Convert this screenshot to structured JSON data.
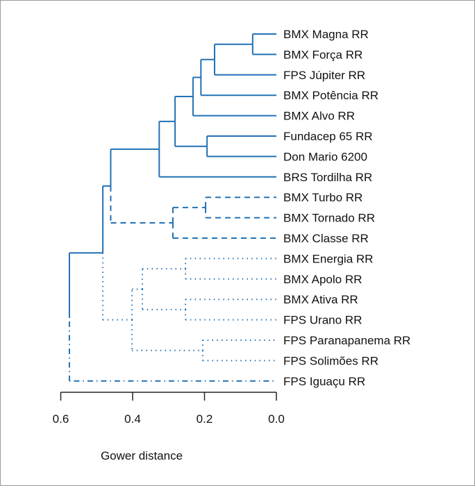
{
  "chart_data": {
    "type": "dendrogram",
    "orientation": "horizontal",
    "xlabel": "Gower distance",
    "xlim": [
      0.6,
      0.0
    ],
    "ticks": [
      "0.6",
      "0.4",
      "0.2",
      "0.0"
    ],
    "tick_values": [
      0.6,
      0.4,
      0.2,
      0.0
    ],
    "line_color": "#2171b5",
    "leaves": [
      "BMX Magna RR",
      "BMX Força RR",
      "FPS Júpiter RR",
      "BMX Potência RR",
      "BMX Alvo RR",
      "Fundacep 65 RR",
      "Don Mario 6200",
      "BRS Tordilha RR",
      "BMX Turbo RR",
      "BMX Tornado RR",
      "BMX Classe RR",
      "BMX Energia RR",
      "BMX Apolo RR",
      "BMX Ativa RR",
      "FPS Urano RR",
      "FPS Paranapanema RR",
      "FPS Solimões RR",
      "FPS Iguaçu RR"
    ],
    "tree": {
      "height": 0.576,
      "style": "solid",
      "children": [
        {
          "height": 0.483,
          "style": "solid",
          "children": [
            {
              "height": 0.461,
              "style": "solid",
              "children": [
                {
                  "height": 0.326,
                  "style": "solid",
                  "children": [
                    {
                      "height": 0.282,
                      "style": "solid",
                      "children": [
                        {
                          "height": 0.232,
                          "style": "solid",
                          "children": [
                            {
                              "height": 0.21,
                              "style": "solid",
                              "children": [
                                {
                                  "height": 0.172,
                                  "style": "solid",
                                  "children": [
                                    {
                                      "height": 0.066,
                                      "style": "solid",
                                      "children": [
                                        {
                                          "leaf": 0,
                                          "style": "solid"
                                        },
                                        {
                                          "leaf": 1,
                                          "style": "solid"
                                        }
                                      ]
                                    },
                                    {
                                      "leaf": 2,
                                      "style": "solid"
                                    }
                                  ]
                                },
                                {
                                  "leaf": 3,
                                  "style": "solid"
                                }
                              ]
                            },
                            {
                              "leaf": 4,
                              "style": "solid"
                            }
                          ]
                        },
                        {
                          "height": 0.193,
                          "style": "solid",
                          "children": [
                            {
                              "leaf": 5,
                              "style": "solid"
                            },
                            {
                              "leaf": 6,
                              "style": "solid"
                            }
                          ]
                        }
                      ]
                    },
                    {
                      "leaf": 7,
                      "style": "solid"
                    }
                  ]
                },
                {
                  "height": 0.288,
                  "style": "dashed",
                  "children": [
                    {
                      "height": 0.197,
                      "style": "dashed",
                      "children": [
                        {
                          "leaf": 8,
                          "style": "dashed"
                        },
                        {
                          "leaf": 9,
                          "style": "dashed"
                        }
                      ]
                    },
                    {
                      "leaf": 10,
                      "style": "dashed"
                    }
                  ]
                }
              ]
            },
            {
              "height": 0.402,
              "style": "dotted",
              "children": [
                {
                  "height": 0.373,
                  "style": "dotted",
                  "children": [
                    {
                      "height": 0.253,
                      "style": "dotted",
                      "children": [
                        {
                          "leaf": 11,
                          "style": "dotted"
                        },
                        {
                          "leaf": 12,
                          "style": "dotted"
                        }
                      ]
                    },
                    {
                      "height": 0.253,
                      "style": "dotted",
                      "children": [
                        {
                          "leaf": 13,
                          "style": "dotted"
                        },
                        {
                          "leaf": 14,
                          "style": "dotted"
                        }
                      ]
                    }
                  ]
                },
                {
                  "height": 0.205,
                  "style": "dotted",
                  "children": [
                    {
                      "leaf": 15,
                      "style": "dotted"
                    },
                    {
                      "leaf": 16,
                      "style": "dotted"
                    }
                  ]
                }
              ]
            }
          ]
        },
        {
          "leaf": 17,
          "style": "dashdot"
        }
      ]
    }
  }
}
